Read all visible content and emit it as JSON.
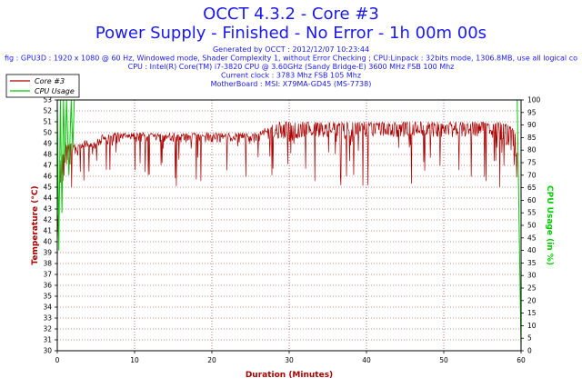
{
  "header": {
    "title": "OCCT 4.3.2 - Core #3",
    "subtitle": "Power Supply - Finished - No Error - 1h 00m 00s",
    "info_lines": [
      "Generated by OCCT : 2012/12/07 10:23:44",
      "fig : GPU3D : 1920 x 1080 @ 60 Hz, Windowed mode, Shader Complexity 1, without Error Checking ; CPU:Linpack : 32bits mode, 1306.8MB, use all logical co",
      "CPU : Intel(R) Core(TM) i7-3820 CPU @ 3.60GHz (Sandy Bridge-E) 3600 MHz FSB 100 Mhz",
      "Current clock : 3783 Mhz FSB 105 Mhz",
      "MotherBoard : MSI: X79MA-GD45 (MS-7738)"
    ]
  },
  "colors": {
    "background": "#ffffff",
    "title": "#1a1aee",
    "temperature": "#aa0000",
    "cpu_usage": "#00cc00",
    "grid": "#8b2020"
  },
  "chart_data": {
    "type": "line",
    "xlabel": "Duration (Minutes)",
    "ylabel": "Temperature (°C)",
    "y2label": "CPU Usage (in %)",
    "xlim": [
      0,
      60
    ],
    "ylim": [
      30,
      53
    ],
    "y2lim": [
      0,
      100
    ],
    "x_ticks": [
      0,
      10,
      20,
      30,
      40,
      50,
      60
    ],
    "y_ticks": [
      30,
      31,
      32,
      33,
      34,
      35,
      36,
      37,
      38,
      39,
      40,
      41,
      42,
      43,
      44,
      45,
      46,
      47,
      48,
      49,
      50,
      51,
      52,
      53
    ],
    "y2_ticks": [
      0,
      5,
      10,
      15,
      20,
      25,
      30,
      35,
      40,
      45,
      50,
      55,
      60,
      65,
      70,
      75,
      80,
      85,
      90,
      95,
      100
    ],
    "grid": true,
    "legend_position": "top-left",
    "series": [
      {
        "name": "Core #3",
        "axis": "left",
        "x": [
          0,
          0.25,
          0.5,
          0.75,
          1.0,
          1.25,
          1.5,
          1.75,
          2.0,
          2.5,
          3,
          4,
          5,
          6,
          7,
          8,
          9,
          10,
          12,
          14,
          16,
          18,
          20,
          22,
          24,
          26,
          28,
          30,
          32,
          34,
          36,
          38,
          40,
          42,
          44,
          46,
          48,
          50,
          52,
          54,
          56,
          58,
          59.5
        ],
        "y": [
          39,
          44,
          47,
          45,
          48,
          47,
          48.5,
          46,
          49,
          48,
          49,
          49,
          49,
          49.5,
          49,
          49.5,
          49.5,
          49.5,
          49.5,
          49.5,
          49.5,
          49.5,
          49.5,
          49.5,
          49.5,
          49.5,
          50,
          49.5,
          50,
          50,
          50,
          50,
          50,
          50,
          50,
          50,
          50,
          50,
          50,
          50,
          50,
          49.5,
          48
        ],
        "min": [
          39,
          40,
          41,
          42,
          42,
          43,
          44,
          43,
          44,
          45,
          45,
          45,
          45,
          45,
          45,
          45,
          45,
          45,
          45,
          45,
          45,
          45,
          45,
          45,
          45,
          45,
          45,
          45,
          45,
          45,
          45,
          45,
          45,
          44,
          45,
          45,
          45,
          45,
          45,
          45,
          45,
          45,
          45
        ],
        "max": [
          40,
          45,
          48,
          48,
          49,
          49,
          49,
          49,
          49,
          49,
          49,
          49,
          49,
          49.5,
          50,
          50,
          50,
          50,
          50,
          50,
          50,
          50,
          50,
          50,
          50,
          50,
          51,
          51,
          51,
          51,
          51,
          51,
          51,
          51,
          51,
          51,
          51,
          51,
          51,
          51,
          51,
          51,
          50
        ]
      },
      {
        "name": "CPU Usage",
        "axis": "right",
        "x": [
          0,
          0.2,
          0.4,
          0.6,
          0.8,
          1.0,
          1.2,
          1.5,
          1.8,
          2.0,
          2.2,
          59.5,
          59.7,
          60
        ],
        "y": [
          100,
          40,
          100,
          55,
          100,
          75,
          100,
          70,
          100,
          80,
          100,
          100,
          60,
          0
        ]
      }
    ]
  }
}
